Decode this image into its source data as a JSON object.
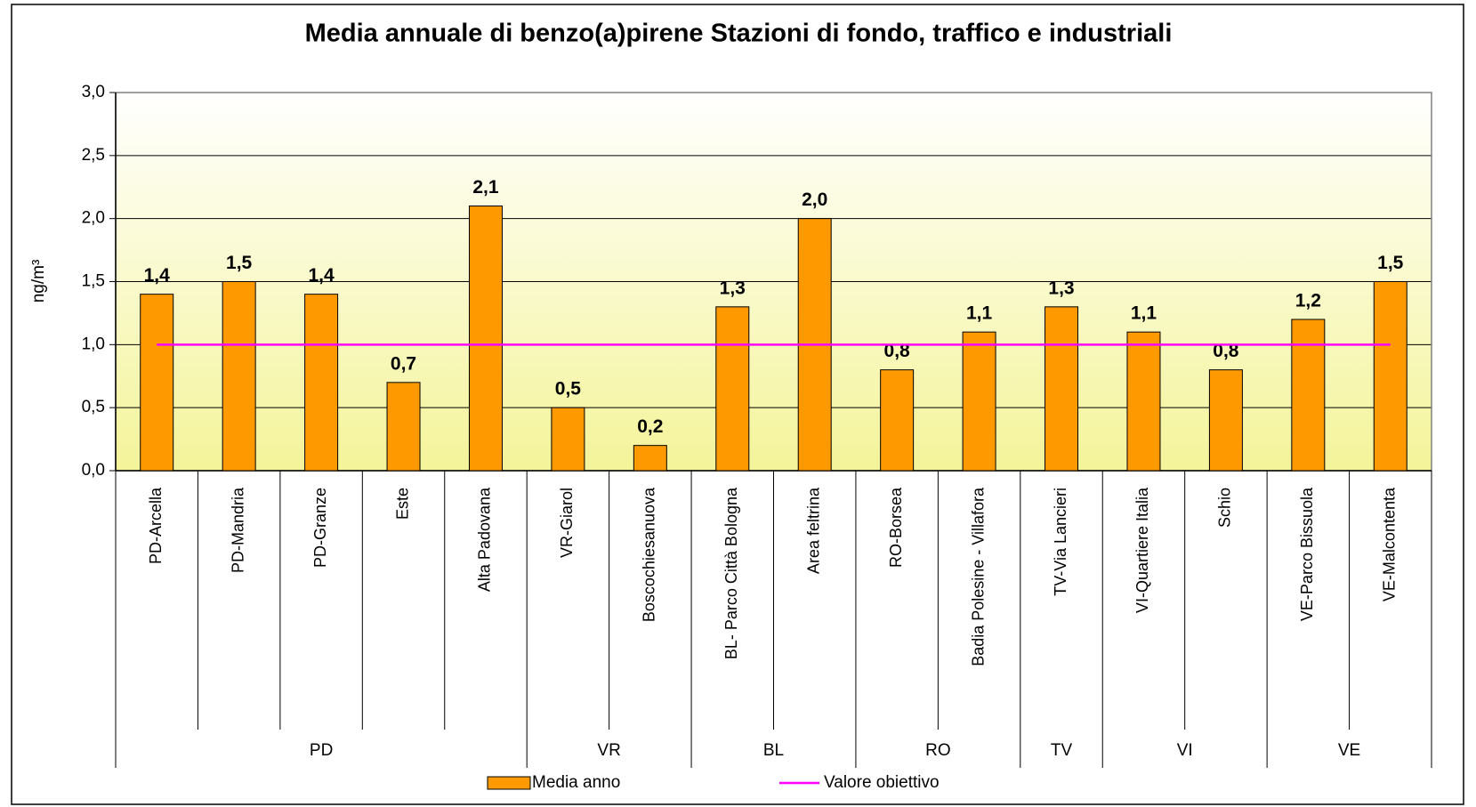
{
  "chart_data": {
    "type": "bar",
    "title": "Media annuale di benzo(a)pirene  Stazioni di fondo, traffico e industriali",
    "y_label": "ng/m³",
    "categories": [
      "PD-Arcella",
      "PD-Mandria",
      "PD-Granze",
      "Este",
      "Alta Padovana",
      "VR-Giarol",
      "Boscochiesanuova",
      "BL- Parco Città Bologna",
      "Area feltrina",
      "RO-Borsea",
      "Badia Polesine - Villafora",
      "TV-Via Lancieri",
      "VI-Quartiere Italia",
      "Schio",
      "VE-Parco Bissuola",
      "VE-Malcontenta"
    ],
    "groups": [
      {
        "name": "PD",
        "count": 5
      },
      {
        "name": "VR",
        "count": 2
      },
      {
        "name": "BL",
        "count": 2
      },
      {
        "name": "RO",
        "count": 2
      },
      {
        "name": "TV",
        "count": 1
      },
      {
        "name": "VI",
        "count": 2
      },
      {
        "name": "VE",
        "count": 2
      }
    ],
    "series": [
      {
        "name": "Media anno",
        "type": "bar",
        "color": "#ff9900",
        "values": [
          1.4,
          1.5,
          1.4,
          0.7,
          2.1,
          0.5,
          0.2,
          1.3,
          2.0,
          0.8,
          1.1,
          1.3,
          1.1,
          0.8,
          1.2,
          1.5
        ],
        "value_labels": [
          "1,4",
          "1,5",
          "1,4",
          "0,7",
          "2,1",
          "0,5",
          "0,2",
          "1,3",
          "2,0",
          "0,8",
          "1,1",
          "1,3",
          "1,1",
          "0,8",
          "1,2",
          "1,5"
        ]
      },
      {
        "name": "Valore obiettivo",
        "type": "line",
        "color": "#ff00ff",
        "values": [
          1.0,
          1.0,
          1.0,
          1.0,
          1.0,
          1.0,
          1.0,
          1.0,
          1.0,
          1.0,
          1.0,
          1.0,
          1.0,
          1.0,
          1.0,
          1.0
        ]
      }
    ],
    "ylim": [
      0,
      3
    ],
    "yticks": [
      {
        "value": 0,
        "label": "0,0"
      },
      {
        "value": 0.5,
        "label": "0,5"
      },
      {
        "value": 1,
        "label": "1,0"
      },
      {
        "value": 1.5,
        "label": "1,5"
      },
      {
        "value": 2,
        "label": "2,0"
      },
      {
        "value": 2.5,
        "label": "2,5"
      },
      {
        "value": 3,
        "label": "3,0"
      }
    ],
    "grid": true,
    "legend": "bottom"
  }
}
